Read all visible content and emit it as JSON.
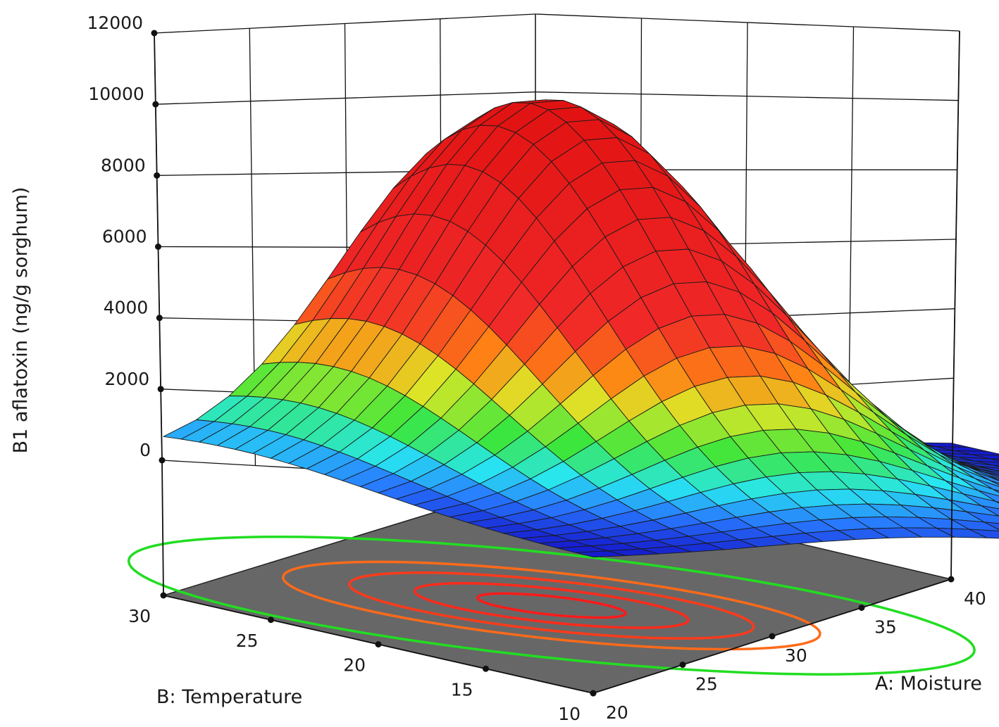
{
  "chart_data": {
    "type": "surface3d",
    "zlabel": "B1 aflatoxin (ng/g sorghum)",
    "xlabel": "A: Moisture",
    "ylabel": "B: Temperature",
    "x_range": [
      20,
      40
    ],
    "y_range": [
      10,
      30
    ],
    "z_range": [
      0,
      12000
    ],
    "x_ticks": [
      "20",
      "25",
      "30",
      "35",
      "40"
    ],
    "y_ticks": [
      "10",
      "15",
      "20",
      "25",
      "30"
    ],
    "z_ticks": [
      "0",
      "2000",
      "4000",
      "6000",
      "8000",
      "10000",
      "12000"
    ],
    "surface_model": {
      "peak_value": 10200,
      "peak_at": {
        "moisture": 23.4,
        "temperature": 22
      },
      "spread": {
        "moisture": 6.5,
        "temperature": 3.5
      },
      "grid_resolution": 24
    },
    "contours": [
      {
        "level": 1000,
        "color": "#22dd22"
      },
      {
        "level": 4000,
        "color": "#ff6a1a"
      },
      {
        "level": 6000,
        "color": "#ff3a1a"
      },
      {
        "level": 8000,
        "color": "#ff2a1a"
      },
      {
        "level": 9500,
        "color": "#ff1a1a"
      }
    ],
    "floor_color": "#676767",
    "grid": true
  }
}
